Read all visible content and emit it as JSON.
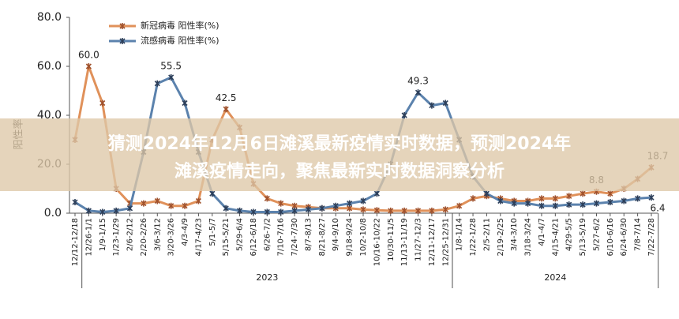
{
  "chart_data": {
    "type": "line",
    "y_label": "阳性率",
    "categories": [
      "12/12-12/18",
      "12/26-1/1",
      "1/9-1/15",
      "1/23-1/29",
      "2/6-2/12",
      "2/20-2/26",
      "3/6-3/12",
      "3/20-3/26",
      "4/3-4/9",
      "4/17-4/23",
      "5/1-5/7",
      "5/15-5/21",
      "5/29-6/4",
      "6/12-6/18",
      "6/26-7/2",
      "7/10-7/16",
      "7/24-7/30",
      "8/7-8/13",
      "8/21-8/27",
      "9/4-9/10",
      "9/18-9/24",
      "10/2-10/8",
      "10/16-10/22",
      "10/30-11/5",
      "11/13-11/19",
      "11/27-12/3",
      "12/11-12/17",
      "12/25-12/31",
      "1/8-1/14",
      "1/22-1/28",
      "2/5-2/11",
      "2/19-2/25",
      "3/4-3/10",
      "3/18-3/24",
      "4/1-4/7",
      "4/15-4/21",
      "4/29-5/5",
      "5/13-5/19",
      "5/27-6/2",
      "6/10-6/16",
      "6/24-6/30",
      "7/8-7/14",
      "7/22-7/28"
    ],
    "groups": [
      {
        "label": "2023",
        "start": 1,
        "end": 27
      },
      {
        "label": "2024",
        "start": 28,
        "end": 42
      }
    ],
    "series": [
      {
        "name": "新冠病毒 阳性率(%)",
        "color": "#e0915a",
        "values": [
          30,
          60.0,
          45,
          10,
          4,
          4,
          5,
          3,
          3,
          5,
          30,
          42.5,
          35,
          12,
          6,
          4,
          3,
          2.5,
          2,
          2,
          2,
          1.5,
          1.2,
          1,
          1,
          1,
          1,
          1.5,
          3,
          6,
          7,
          6,
          5,
          5,
          6,
          6,
          7,
          8,
          8.8,
          8,
          10,
          14,
          18.7
        ],
        "value_labels": [
          null,
          "60.0",
          null,
          null,
          null,
          null,
          null,
          null,
          null,
          null,
          null,
          "42.5",
          null,
          null,
          null,
          null,
          null,
          null,
          null,
          null,
          null,
          null,
          null,
          null,
          null,
          null,
          null,
          null,
          null,
          null,
          null,
          null,
          null,
          null,
          null,
          null,
          null,
          null,
          "8.8",
          null,
          null,
          null,
          "18.7"
        ]
      },
      {
        "name": "流感病毒 阳性率(%)",
        "color": "#5b82ad",
        "values": [
          4.5,
          1,
          0.5,
          1,
          2,
          25,
          53,
          55.5,
          45,
          25,
          8,
          2,
          1,
          0.5,
          0.5,
          0.5,
          1,
          1.5,
          2,
          3,
          4,
          5,
          8,
          20,
          40,
          49.3,
          44,
          45,
          30,
          15,
          8,
          5,
          4,
          4,
          3,
          3,
          3.5,
          3.5,
          4,
          4.5,
          5,
          6,
          6.4
        ],
        "value_labels": [
          null,
          null,
          null,
          null,
          null,
          null,
          null,
          "55.5",
          null,
          null,
          null,
          null,
          null,
          null,
          null,
          null,
          null,
          null,
          null,
          null,
          null,
          null,
          null,
          null,
          null,
          "49.3",
          null,
          null,
          null,
          null,
          null,
          null,
          null,
          null,
          null,
          null,
          null,
          null,
          null,
          null,
          null,
          null,
          "6.4"
        ]
      }
    ],
    "ylim": [
      0,
      80
    ],
    "yticks": [
      {
        "value": 0,
        "label": "0.0"
      },
      {
        "value": 20,
        "label": "20.0"
      },
      {
        "value": 40,
        "label": "40.0"
      },
      {
        "value": 60,
        "label": "60.0"
      },
      {
        "value": 80,
        "label": "80.0"
      }
    ],
    "legend": "top-left"
  },
  "banner": {
    "lines": [
      "猜测2024年12月6日滩溪最新疫情实时数据，预测2024年",
      "滩溪疫情走向，聚焦最新实时数据洞察分析"
    ]
  }
}
